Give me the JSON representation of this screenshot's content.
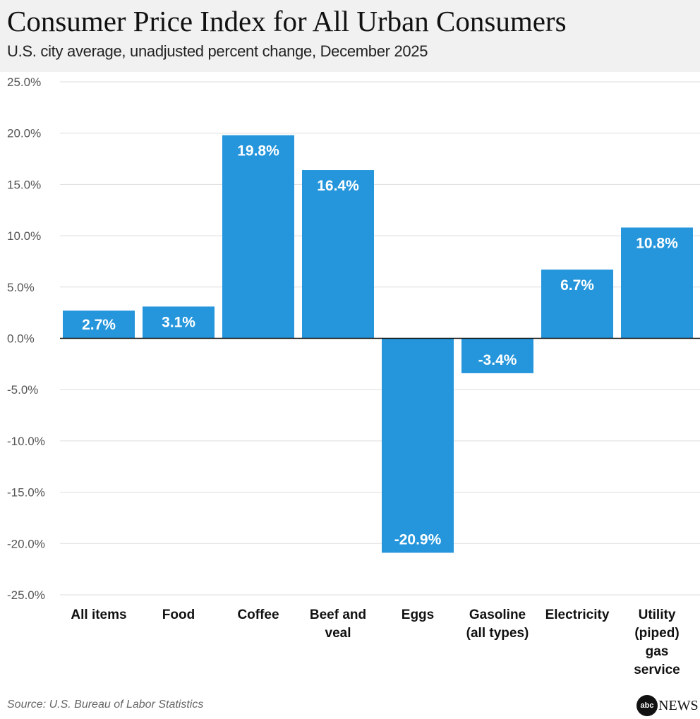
{
  "chart_data": {
    "type": "bar",
    "title": "Consumer Price Index for All Urban Consumers",
    "subtitle": "U.S. city average, unadjusted percent change, December 2025",
    "categories": [
      "All items",
      "Food",
      "Coffee",
      "Beef and veal",
      "Eggs",
      "Gasoline (all types)",
      "Electricity",
      "Utility (piped) gas service"
    ],
    "category_lines": [
      [
        "All items"
      ],
      [
        "Food"
      ],
      [
        "Coffee"
      ],
      [
        "Beef and",
        "veal"
      ],
      [
        "Eggs"
      ],
      [
        "Gasoline",
        "(all types)"
      ],
      [
        "Electricity"
      ],
      [
        "Utility",
        "(piped)",
        "gas",
        "service"
      ]
    ],
    "values": [
      2.7,
      3.1,
      19.8,
      16.4,
      -20.9,
      -3.4,
      6.7,
      10.8
    ],
    "data_labels": [
      "2.7%",
      "3.1%",
      "19.8%",
      "16.4%",
      "-20.9%",
      "-3.4%",
      "6.7%",
      "10.8%"
    ],
    "xlabel": "",
    "ylabel": "",
    "ylim": [
      -25,
      25
    ],
    "yticks": [
      25,
      20,
      15,
      10,
      5,
      0,
      -5,
      -10,
      -15,
      -20,
      -25
    ],
    "ytick_labels": [
      "25.0%",
      "20.0%",
      "15.0%",
      "10.0%",
      "5.0%",
      "0.0%",
      "-5.0%",
      "-10.0%",
      "-15.0%",
      "-20.0%",
      "-25.0%"
    ],
    "grid": true,
    "legend": "none",
    "bar_color": "#2596dc"
  },
  "footer": {
    "source": "Source: U.S. Bureau of Labor Statistics",
    "logo_text": "abc NEWS"
  }
}
